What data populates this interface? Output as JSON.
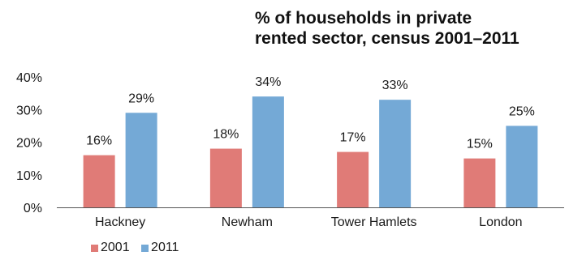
{
  "chart_data": {
    "type": "bar",
    "title_lines": [
      "% of households in private",
      "rented sector, census 2001–2011"
    ],
    "categories": [
      "Hackney",
      "Newham",
      "Tower Hamlets",
      "London"
    ],
    "series": [
      {
        "name": "2001",
        "color": "#e07b77",
        "values": [
          16,
          18,
          17,
          15
        ],
        "labels": [
          "16%",
          "18%",
          "17%",
          "15%"
        ]
      },
      {
        "name": "2011",
        "color": "#74a9d6",
        "values": [
          29,
          34,
          33,
          25
        ],
        "labels": [
          "29%",
          "34%",
          "33%",
          "25%"
        ]
      }
    ],
    "y_ticks": [
      0,
      10,
      20,
      30,
      40
    ],
    "y_tick_labels": [
      "0%",
      "10%",
      "20%",
      "30%",
      "40%"
    ],
    "ylim": [
      0,
      40
    ],
    "grid": false,
    "legend_position": "bottom-left"
  }
}
